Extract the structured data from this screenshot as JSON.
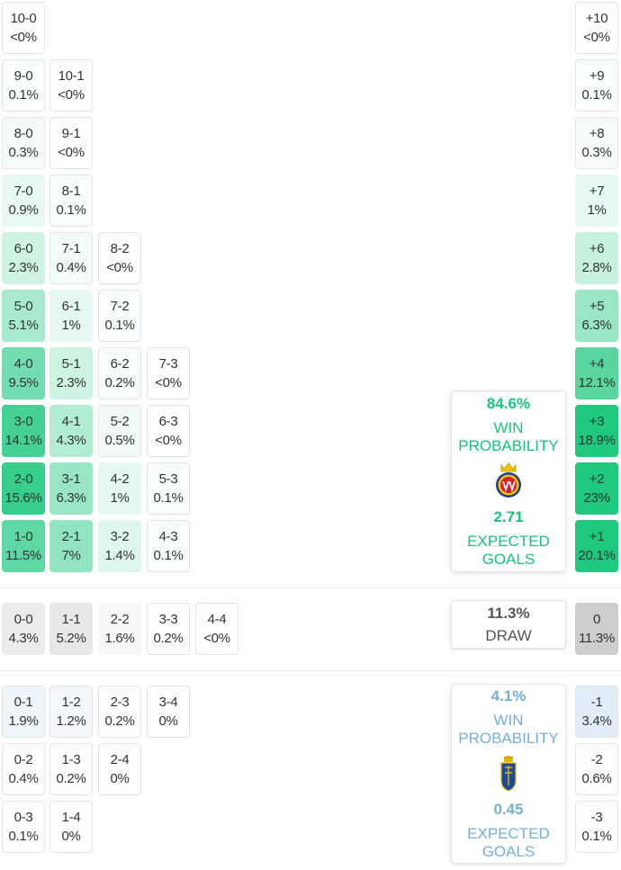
{
  "colors": {
    "home_accent": "#16c47a",
    "away_accent": "#72b0d8",
    "draw_accent": "#9a9a9a"
  },
  "home_summary": {
    "win_pct": "84.6%",
    "win_label_1": "WIN",
    "win_label_2": "PROBABILITY",
    "xg": "2.71",
    "xg_label_1": "EXPECTED",
    "xg_label_2": "GOALS",
    "badge_icon": "villarreal-crest-icon"
  },
  "draw_summary": {
    "pct": "11.3%",
    "label": "DRAW"
  },
  "away_summary": {
    "win_pct": "4.1%",
    "win_label_1": "WIN",
    "win_label_2": "PROBABILITY",
    "xg": "0.45",
    "xg_label_1": "EXPECTED",
    "xg_label_2": "GOALS",
    "badge_icon": "oviedo-crest-icon"
  },
  "chart_data": {
    "type": "heatmap",
    "title": "",
    "home_wins": [
      {
        "score": "10-0",
        "prob": "<0%",
        "value": 0
      },
      {
        "score": "9-0",
        "prob": "0.1%",
        "value": 0.1
      },
      {
        "score": "10-1",
        "prob": "<0%",
        "value": 0
      },
      {
        "score": "8-0",
        "prob": "0.3%",
        "value": 0.3
      },
      {
        "score": "9-1",
        "prob": "<0%",
        "value": 0
      },
      {
        "score": "7-0",
        "prob": "0.9%",
        "value": 0.9
      },
      {
        "score": "8-1",
        "prob": "0.1%",
        "value": 0.1
      },
      {
        "score": "6-0",
        "prob": "2.3%",
        "value": 2.3
      },
      {
        "score": "7-1",
        "prob": "0.4%",
        "value": 0.4
      },
      {
        "score": "8-2",
        "prob": "<0%",
        "value": 0
      },
      {
        "score": "5-0",
        "prob": "5.1%",
        "value": 5.1
      },
      {
        "score": "6-1",
        "prob": "1%",
        "value": 1
      },
      {
        "score": "7-2",
        "prob": "0.1%",
        "value": 0.1
      },
      {
        "score": "4-0",
        "prob": "9.5%",
        "value": 9.5
      },
      {
        "score": "5-1",
        "prob": "2.3%",
        "value": 2.3
      },
      {
        "score": "6-2",
        "prob": "0.2%",
        "value": 0.2
      },
      {
        "score": "7-3",
        "prob": "<0%",
        "value": 0
      },
      {
        "score": "3-0",
        "prob": "14.1%",
        "value": 14.1
      },
      {
        "score": "4-1",
        "prob": "4.3%",
        "value": 4.3
      },
      {
        "score": "5-2",
        "prob": "0.5%",
        "value": 0.5
      },
      {
        "score": "6-3",
        "prob": "<0%",
        "value": 0
      },
      {
        "score": "2-0",
        "prob": "15.6%",
        "value": 15.6
      },
      {
        "score": "3-1",
        "prob": "6.3%",
        "value": 6.3
      },
      {
        "score": "4-2",
        "prob": "1%",
        "value": 1
      },
      {
        "score": "5-3",
        "prob": "0.1%",
        "value": 0.1
      },
      {
        "score": "1-0",
        "prob": "11.5%",
        "value": 11.5
      },
      {
        "score": "2-1",
        "prob": "7%",
        "value": 7
      },
      {
        "score": "3-2",
        "prob": "1.4%",
        "value": 1.4
      },
      {
        "score": "4-3",
        "prob": "0.1%",
        "value": 0.1
      }
    ],
    "home_margins": [
      {
        "margin": "+10",
        "prob": "<0%",
        "value": 0
      },
      {
        "margin": "+9",
        "prob": "0.1%",
        "value": 0.1
      },
      {
        "margin": "+8",
        "prob": "0.3%",
        "value": 0.3
      },
      {
        "margin": "+7",
        "prob": "1%",
        "value": 1
      },
      {
        "margin": "+6",
        "prob": "2.8%",
        "value": 2.8
      },
      {
        "margin": "+5",
        "prob": "6.3%",
        "value": 6.3
      },
      {
        "margin": "+4",
        "prob": "12.1%",
        "value": 12.1
      },
      {
        "margin": "+3",
        "prob": "18.9%",
        "value": 18.9
      },
      {
        "margin": "+2",
        "prob": "23%",
        "value": 23
      },
      {
        "margin": "+1",
        "prob": "20.1%",
        "value": 20.1
      }
    ],
    "draws": [
      {
        "score": "0-0",
        "prob": "4.3%",
        "value": 4.3
      },
      {
        "score": "1-1",
        "prob": "5.2%",
        "value": 5.2
      },
      {
        "score": "2-2",
        "prob": "1.6%",
        "value": 1.6
      },
      {
        "score": "3-3",
        "prob": "0.2%",
        "value": 0.2
      },
      {
        "score": "4-4",
        "prob": "<0%",
        "value": 0
      }
    ],
    "draw_margin": {
      "margin": "0",
      "prob": "11.3%",
      "value": 11.3
    },
    "away_wins": [
      {
        "score": "0-1",
        "prob": "1.9%",
        "value": 1.9
      },
      {
        "score": "1-2",
        "prob": "1.2%",
        "value": 1.2
      },
      {
        "score": "2-3",
        "prob": "0.2%",
        "value": 0.2
      },
      {
        "score": "3-4",
        "prob": "0%",
        "value": 0
      },
      {
        "score": "0-2",
        "prob": "0.4%",
        "value": 0.4
      },
      {
        "score": "1-3",
        "prob": "0.2%",
        "value": 0.2
      },
      {
        "score": "2-4",
        "prob": "0%",
        "value": 0
      },
      {
        "score": "0-3",
        "prob": "0.1%",
        "value": 0.1
      },
      {
        "score": "1-4",
        "prob": "0%",
        "value": 0
      }
    ],
    "away_margins": [
      {
        "margin": "-1",
        "prob": "3.4%",
        "value": 3.4
      },
      {
        "margin": "-2",
        "prob": "0.6%",
        "value": 0.6
      },
      {
        "margin": "-3",
        "prob": "0.1%",
        "value": 0.1
      }
    ]
  }
}
